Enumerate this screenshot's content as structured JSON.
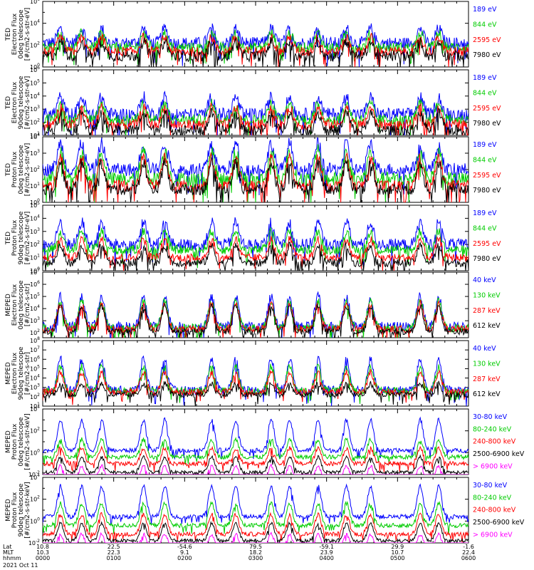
{
  "chart_data": {
    "type": "line",
    "panels": [
      {
        "ylabel": [
          "TED",
          "Electron Flux",
          "0deg telescope",
          "[#/cm2-s-str-eV]"
        ],
        "ytick_exps": [
          0,
          2,
          4,
          6
        ],
        "ylog": true,
        "series": [
          {
            "name": "7980 eV",
            "color": "#000000",
            "base": 1.0,
            "peak": 2.3,
            "spread": 1.0
          },
          {
            "name": "2595 eV",
            "color": "#ff0000",
            "base": 1.4,
            "peak": 2.7,
            "spread": 0.9
          },
          {
            "name": "844 eV",
            "color": "#00cc00",
            "base": 1.8,
            "peak": 3.1,
            "spread": 0.9
          },
          {
            "name": "189 eV",
            "color": "#0000ff",
            "base": 2.2,
            "peak": 3.5,
            "spread": 1.1
          }
        ]
      },
      {
        "ylabel": [
          "TED",
          "Electron Flux",
          "90deg telescope",
          "[#/cm2-s-str-eV]"
        ],
        "ytick_exps": [
          1,
          2,
          3,
          4,
          5,
          6
        ],
        "ylog": true,
        "series": [
          {
            "name": "7980 eV",
            "color": "#000000",
            "base": 1.4,
            "peak": 2.7,
            "spread": 0.8
          },
          {
            "name": "2595 eV",
            "color": "#ff0000",
            "base": 1.8,
            "peak": 3.1,
            "spread": 0.8
          },
          {
            "name": "844 eV",
            "color": "#00cc00",
            "base": 2.2,
            "peak": 3.4,
            "spread": 0.8
          },
          {
            "name": "189 eV",
            "color": "#0000ff",
            "base": 2.6,
            "peak": 3.9,
            "spread": 1.0
          }
        ]
      },
      {
        "ylabel": [
          "TED",
          "Proton Flux",
          "0deg telescope",
          "[#/cm2-s-str-eV]"
        ],
        "ytick_exps": [
          0,
          1,
          2,
          3,
          4
        ],
        "ylog": true,
        "series": [
          {
            "name": "7980 eV",
            "color": "#000000",
            "base": 0.8,
            "peak": 2.4,
            "spread": 0.7
          },
          {
            "name": "2595 eV",
            "color": "#ff0000",
            "base": 1.0,
            "peak": 2.7,
            "spread": 0.7
          },
          {
            "name": "844 eV",
            "color": "#00cc00",
            "base": 1.4,
            "peak": 3.1,
            "spread": 0.9
          },
          {
            "name": "189 eV",
            "color": "#0000ff",
            "base": 2.0,
            "peak": 3.6,
            "spread": 0.8
          }
        ]
      },
      {
        "ylabel": [
          "TED",
          "Proton Flux",
          "90deg telescope",
          "[#/cm2-s-str-eV]"
        ],
        "ytick_exps": [
          0,
          1,
          2,
          3,
          4,
          5
        ],
        "ylog": true,
        "series": [
          {
            "name": "7980 eV",
            "color": "#000000",
            "base": 0.6,
            "peak": 1.9,
            "spread": 0.6
          },
          {
            "name": "2595 eV",
            "color": "#ff0000",
            "base": 1.0,
            "peak": 2.4,
            "spread": 0.6
          },
          {
            "name": "844 eV",
            "color": "#00cc00",
            "base": 1.6,
            "peak": 3.0,
            "spread": 0.7
          },
          {
            "name": "189 eV",
            "color": "#0000ff",
            "base": 2.0,
            "peak": 3.7,
            "spread": 0.9
          }
        ]
      },
      {
        "ylabel": [
          "MEPED",
          "Electron Flux",
          "0deg telescope",
          "[#/cm2-s-str]"
        ],
        "ytick_exps": [
          2,
          3,
          4,
          5,
          6,
          7
        ],
        "ylog": true,
        "series": [
          {
            "name": "612 keV",
            "color": "#000000",
            "base": 2.1,
            "peak": 4.2,
            "spread": 0.5
          },
          {
            "name": "287 keV",
            "color": "#ff0000",
            "base": 2.3,
            "peak": 4.4,
            "spread": 0.6
          },
          {
            "name": "130 keV",
            "color": "#00cc00",
            "base": 2.4,
            "peak": 4.6,
            "spread": 0.7
          },
          {
            "name": "40 keV",
            "color": "#0000ff",
            "base": 2.5,
            "peak": 5.0,
            "spread": 0.8
          }
        ]
      },
      {
        "ylabel": [
          "MEPED",
          "Electron Flux",
          "90deg telescope",
          "[#/cm2-s-str]"
        ],
        "ytick_exps": [
          1,
          2,
          3,
          4,
          5,
          6,
          7,
          8
        ],
        "ylog": true,
        "series": [
          {
            "name": "612 keV",
            "color": "#000000",
            "base": 2.2,
            "peak": 3.4,
            "spread": 0.6
          },
          {
            "name": "287 keV",
            "color": "#ff0000",
            "base": 2.5,
            "peak": 4.6,
            "spread": 0.7
          },
          {
            "name": "130 keV",
            "color": "#00cc00",
            "base": 2.6,
            "peak": 5.2,
            "spread": 0.8
          },
          {
            "name": "40 keV",
            "color": "#0000ff",
            "base": 2.7,
            "peak": 6.0,
            "spread": 0.9
          }
        ]
      },
      {
        "ylabel": [
          "MEPED",
          "Proton Flux",
          "0deg telescope",
          "[#/cm2-s-str-keV]"
        ],
        "ytick_exps": [
          -2,
          0,
          2,
          4
        ],
        "ylog": true,
        "series": [
          {
            "name": "> 6900 keV",
            "color": "#ff00ff",
            "base": -2.6,
            "peak": -1.2,
            "spread": 0.3
          },
          {
            "name": "2500-6900 keV",
            "color": "#000000",
            "base": -1.8,
            "peak": -0.4,
            "spread": 0.3
          },
          {
            "name": "240-800 keV",
            "color": "#ff0000",
            "base": -1.0,
            "peak": 0.4,
            "spread": 0.4
          },
          {
            "name": "80-240 keV",
            "color": "#00cc00",
            "base": -0.4,
            "peak": 1.2,
            "spread": 0.4
          },
          {
            "name": "30-80 keV",
            "color": "#0000ff",
            "base": 0.2,
            "peak": 3.0,
            "spread": 0.4
          }
        ]
      },
      {
        "ylabel": [
          "MEPED",
          "Proton Flux",
          "90deg telescope",
          "[#/cm2-s-str-keV]"
        ],
        "ytick_exps": [
          -2,
          0,
          2,
          4
        ],
        "ylog": true,
        "series": [
          {
            "name": "> 6900 keV",
            "color": "#ff00ff",
            "base": -2.6,
            "peak": -1.2,
            "spread": 0.3
          },
          {
            "name": "2500-6900 keV",
            "color": "#000000",
            "base": -1.8,
            "peak": -0.2,
            "spread": 0.3
          },
          {
            "name": "240-800 keV",
            "color": "#ff0000",
            "base": -1.2,
            "peak": 0.6,
            "spread": 0.4
          },
          {
            "name": "80-240 keV",
            "color": "#00cc00",
            "base": -0.4,
            "peak": 1.6,
            "spread": 0.4
          },
          {
            "name": "30-80 keV",
            "color": "#0000ff",
            "base": 0.4,
            "peak": 3.2,
            "spread": 0.4
          }
        ]
      }
    ],
    "x_axis": {
      "row_labels": [
        "Lat",
        "MLT",
        "hhmm",
        "2021 Oct 11"
      ],
      "ticks": [
        {
          "lat": "10.8",
          "mlt": "10.3",
          "hhmm": "0000"
        },
        {
          "lat": "22.5",
          "mlt": "22.3",
          "hhmm": "0100"
        },
        {
          "lat": "-54.6",
          "mlt": "9.1",
          "hhmm": "0200"
        },
        {
          "lat": "79.5",
          "mlt": "18.2",
          "hhmm": "0300"
        },
        {
          "lat": "-59.1",
          "mlt": "23.9",
          "hhmm": "0400"
        },
        {
          "lat": "29.9",
          "mlt": "10.7",
          "hhmm": "0500"
        },
        {
          "lat": "-1.6",
          "mlt": "22.4",
          "hhmm": "0600"
        }
      ],
      "passes_at_hours": [
        0.25,
        0.55,
        0.83,
        1.42,
        1.72,
        2.38,
        2.72,
        3.22,
        3.48,
        3.88,
        4.28,
        4.62,
        5.32,
        5.58
      ]
    }
  }
}
